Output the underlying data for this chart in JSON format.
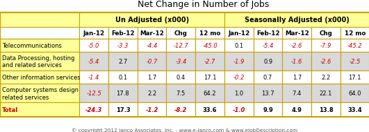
{
  "title": "Net Change in Number of Jobs",
  "copyright": "© copyright 2012 Janco Associates, Inc. - www.e-janco.com & www.eJobDescription.com",
  "col_groups": [
    {
      "label": "Un Adjusted (x000)",
      "cols": [
        "Jan-12",
        "Feb-12",
        "Mar-12",
        "Chg",
        "12 mo"
      ]
    },
    {
      "label": "Seasonally Adjusted (x000)",
      "cols": [
        "Jan-12",
        "Feb-12",
        "Mar-12",
        "Chg",
        "12 mo"
      ]
    }
  ],
  "row_labels": [
    "Telecommunications",
    "Data Processing, hosting\nand related services",
    "Other information services",
    "Computer systems design\nrelated services",
    "Total"
  ],
  "data": [
    [
      -5.0,
      -3.3,
      -4.4,
      -12.7,
      -45.0,
      0.1,
      -5.4,
      -2.6,
      -7.9,
      -45.2
    ],
    [
      -5.4,
      2.7,
      -0.7,
      -3.4,
      -2.7,
      -1.9,
      0.9,
      -1.6,
      -2.6,
      -2.5
    ],
    [
      -1.4,
      0.1,
      1.7,
      0.4,
      17.1,
      -0.2,
      0.7,
      1.7,
      2.2,
      17.1
    ],
    [
      -12.5,
      17.8,
      2.2,
      7.5,
      64.2,
      1.0,
      13.7,
      7.4,
      22.1,
      64.0
    ],
    [
      -24.3,
      17.3,
      -1.2,
      -8.2,
      33.6,
      -1.0,
      9.9,
      4.9,
      13.8,
      33.4
    ]
  ],
  "row_bg_colors": [
    "#ffffff",
    "#d9d9d9",
    "#ffffff",
    "#d9d9d9",
    "#ffffff"
  ],
  "label_col_bg": "#ffff99",
  "header_group_bg": "#ffff99",
  "border_color": "#c8a000",
  "neg_color": "#cc0000",
  "pos_color": "#000000",
  "total_label_color": "#cc0000",
  "label_text_color": "#000000",
  "fig_bg": "#ffffff"
}
